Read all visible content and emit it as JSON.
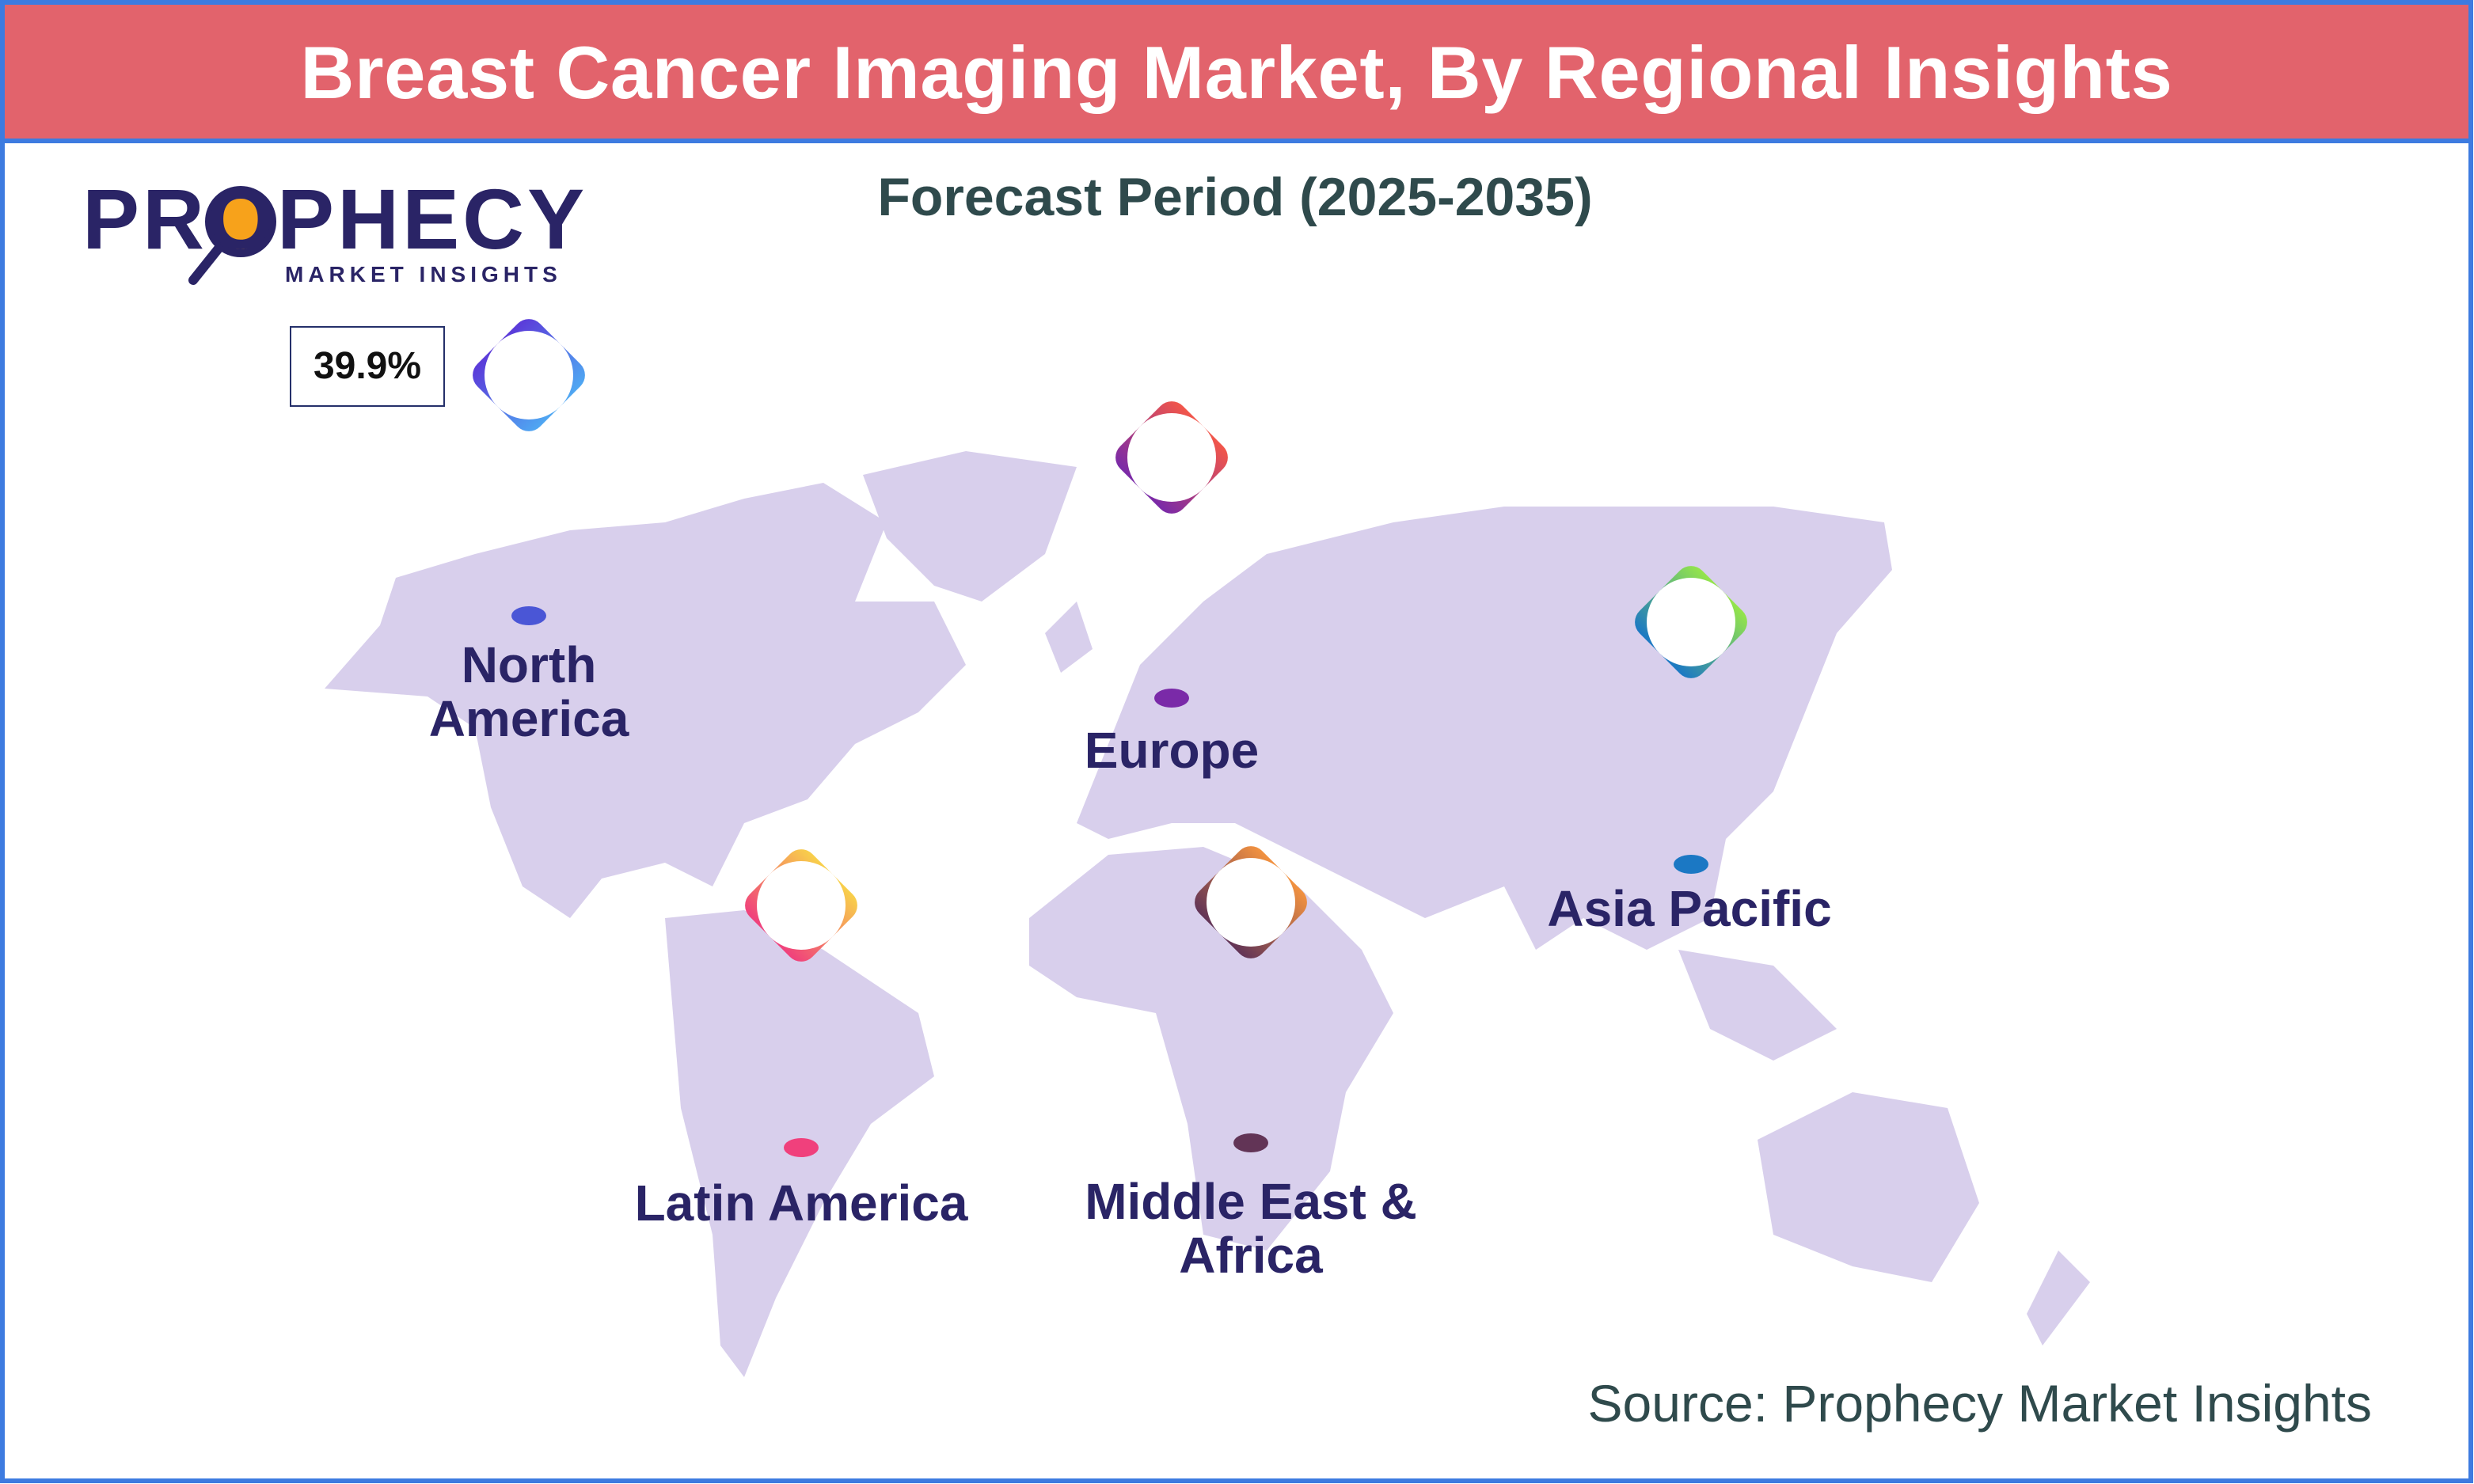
{
  "header": {
    "title": "Breast Cancer Imaging Market, By Regional Insights"
  },
  "subtitle": "Forecast Period (2025-2035)",
  "logo": {
    "name": "PROPHECY",
    "tagline": "MARKET INSIGHTS"
  },
  "regions": [
    {
      "label": "North America",
      "value_label": "39.9%"
    },
    {
      "label": "Europe"
    },
    {
      "label": "Asia Pacific"
    },
    {
      "label": "Latin America"
    },
    {
      "label": "Middle East & Africa"
    }
  ],
  "source": "Source: Prophecy Market Insights"
}
